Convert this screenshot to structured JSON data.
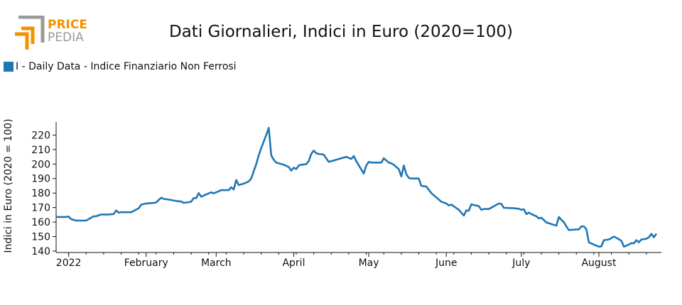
{
  "brand": {
    "name_line1": "PRICE",
    "name_line2": "PEDIA",
    "accent_color": "#f39200",
    "gray_color": "#9a9a9a"
  },
  "chart_data": {
    "type": "line",
    "title": "Dati Giornalieri, Indici in Euro (2020=100)",
    "xlabel": "",
    "ylabel": "Indici in Euro (2020 = 100)",
    "ylim": [
      139,
      229
    ],
    "yticks": [
      140,
      150,
      160,
      170,
      180,
      190,
      200,
      210,
      220
    ],
    "xlim": [
      -5,
      237
    ],
    "xticks": [
      {
        "label": "2022",
        "day": 0
      },
      {
        "label": "February",
        "day": 31
      },
      {
        "label": "March",
        "day": 59
      },
      {
        "label": "April",
        "day": 90
      },
      {
        "label": "May",
        "day": 120
      },
      {
        "label": "June",
        "day": 151
      },
      {
        "label": "July",
        "day": 181
      },
      {
        "label": "August",
        "day": 212
      }
    ],
    "grid": false,
    "legend_position": "top-left",
    "series": [
      {
        "name": "I - Daily Data - Indice Finanziario Non Ferrosi",
        "color": "#1f77b4",
        "points": [
          [
            -5,
            163.5
          ],
          [
            -1,
            163.5
          ],
          [
            0,
            163.8
          ],
          [
            1,
            162
          ],
          [
            3,
            161
          ],
          [
            7,
            161
          ],
          [
            10,
            164
          ],
          [
            11,
            164
          ],
          [
            13,
            165.2
          ],
          [
            16,
            165.2
          ],
          [
            18,
            165.5
          ],
          [
            19,
            168
          ],
          [
            20,
            166.5
          ],
          [
            21,
            166.8
          ],
          [
            25,
            166.8
          ],
          [
            28,
            169.5
          ],
          [
            29,
            172
          ],
          [
            31,
            172.8
          ],
          [
            34,
            173.2
          ],
          [
            35,
            173.5
          ],
          [
            36,
            175.2
          ],
          [
            37,
            176.8
          ],
          [
            38,
            176
          ],
          [
            40,
            175.5
          ],
          [
            41,
            175.2
          ],
          [
            43,
            174.5
          ],
          [
            45,
            174.2
          ],
          [
            46,
            173.2
          ],
          [
            49,
            174
          ],
          [
            50,
            176.5
          ],
          [
            51,
            176.5
          ],
          [
            52,
            180
          ],
          [
            53,
            177.5
          ],
          [
            55,
            179
          ],
          [
            57,
            180.5
          ],
          [
            58,
            179.8
          ],
          [
            60,
            181.2
          ],
          [
            61,
            182
          ],
          [
            63,
            182
          ],
          [
            64,
            182
          ],
          [
            65,
            184
          ],
          [
            66,
            182.5
          ],
          [
            67,
            189
          ],
          [
            68,
            185.5
          ],
          [
            70,
            186.5
          ],
          [
            72,
            188
          ],
          [
            73,
            190
          ],
          [
            74,
            195
          ],
          [
            75,
            200
          ],
          [
            76,
            206
          ],
          [
            77,
            211
          ],
          [
            79,
            220
          ],
          [
            80,
            225
          ],
          [
            81,
            206
          ],
          [
            82,
            203
          ],
          [
            83,
            201
          ],
          [
            84,
            200.5
          ],
          [
            86,
            199.5
          ],
          [
            88,
            198
          ],
          [
            89,
            195.5
          ],
          [
            90,
            197.5
          ],
          [
            91,
            196.5
          ],
          [
            92,
            199
          ],
          [
            93,
            199.5
          ],
          [
            95,
            200
          ],
          [
            96,
            202
          ],
          [
            97,
            207
          ],
          [
            98,
            209.3
          ],
          [
            99,
            207.5
          ],
          [
            100,
            207
          ],
          [
            102,
            206.5
          ],
          [
            103,
            204
          ],
          [
            104,
            201.5
          ],
          [
            105,
            202
          ],
          [
            107,
            203
          ],
          [
            109,
            204
          ],
          [
            111,
            205
          ],
          [
            113,
            203.5
          ],
          [
            114,
            205.5
          ],
          [
            115,
            202
          ],
          [
            118,
            193.5
          ],
          [
            119,
            199
          ],
          [
            120,
            201.5
          ],
          [
            121,
            201
          ],
          [
            125,
            201
          ],
          [
            126,
            204
          ],
          [
            127,
            202.5
          ],
          [
            128,
            201
          ],
          [
            129,
            200.5
          ],
          [
            130,
            199.5
          ],
          [
            131,
            198
          ],
          [
            132,
            196.5
          ],
          [
            133,
            191.5
          ],
          [
            134,
            199
          ],
          [
            135,
            193
          ],
          [
            136,
            190.5
          ],
          [
            137,
            190
          ],
          [
            140,
            190
          ],
          [
            141,
            185
          ],
          [
            143,
            184.5
          ],
          [
            145,
            180
          ],
          [
            147,
            177
          ],
          [
            149,
            174
          ],
          [
            151,
            172.8
          ],
          [
            152,
            171.5
          ],
          [
            153,
            172
          ],
          [
            156,
            168.5
          ],
          [
            157,
            166.5
          ],
          [
            158,
            164.5
          ],
          [
            159,
            168
          ],
          [
            160,
            167.8
          ],
          [
            161,
            172.2
          ],
          [
            164,
            171
          ],
          [
            165,
            168.5
          ],
          [
            166,
            169
          ],
          [
            168,
            169
          ],
          [
            172,
            172.8
          ],
          [
            173,
            172.5
          ],
          [
            174,
            169.8
          ],
          [
            178,
            169.5
          ],
          [
            180,
            169.2
          ],
          [
            181,
            168.5
          ],
          [
            182,
            168.8
          ],
          [
            183,
            165.5
          ],
          [
            184,
            166.5
          ],
          [
            185,
            165.5
          ],
          [
            187,
            164
          ],
          [
            188,
            162.5
          ],
          [
            189,
            163
          ],
          [
            191,
            159.8
          ],
          [
            195,
            157.5
          ],
          [
            196,
            163.5
          ],
          [
            197,
            161.5
          ],
          [
            198,
            160
          ],
          [
            199,
            157
          ],
          [
            200,
            154.5
          ],
          [
            204,
            155
          ],
          [
            205,
            157
          ],
          [
            206,
            157
          ],
          [
            207,
            155
          ],
          [
            208,
            146
          ],
          [
            210,
            144.5
          ],
          [
            212,
            143
          ],
          [
            213,
            143.2
          ],
          [
            214,
            147.5
          ],
          [
            216,
            148
          ],
          [
            217,
            149
          ],
          [
            218,
            150
          ],
          [
            220,
            148.2
          ],
          [
            221,
            147
          ],
          [
            222,
            143
          ],
          [
            224,
            144.5
          ],
          [
            225,
            145.5
          ],
          [
            226,
            145.3
          ],
          [
            227,
            147.5
          ],
          [
            228,
            146
          ],
          [
            229,
            148
          ],
          [
            231,
            148.5
          ],
          [
            232,
            149.5
          ],
          [
            233,
            151.8
          ],
          [
            234,
            149.5
          ],
          [
            235,
            152
          ]
        ]
      }
    ]
  }
}
